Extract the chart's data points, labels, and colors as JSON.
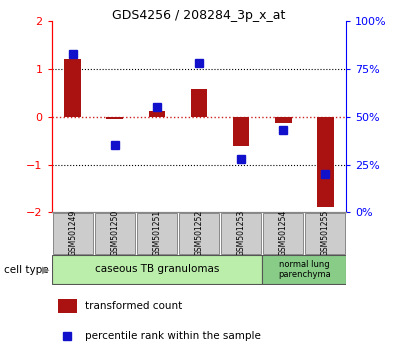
{
  "title": "GDS4256 / 208284_3p_x_at",
  "samples": [
    "GSM501249",
    "GSM501250",
    "GSM501251",
    "GSM501252",
    "GSM501253",
    "GSM501254",
    "GSM501255"
  ],
  "transformed_count": [
    1.22,
    -0.05,
    0.12,
    0.58,
    -0.62,
    -0.12,
    -1.88
  ],
  "percentile_rank": [
    83,
    35,
    55,
    78,
    28,
    43,
    20
  ],
  "left_ylim": [
    -2,
    2
  ],
  "right_ylim": [
    0,
    100
  ],
  "left_yticks": [
    -2,
    -1,
    0,
    1,
    2
  ],
  "right_yticks": [
    0,
    25,
    50,
    75,
    100
  ],
  "right_yticklabels": [
    "0%",
    "25%",
    "50%",
    "75%",
    "100%"
  ],
  "bar_color": "#aa1111",
  "marker_color": "#1111cc",
  "dotted_line_color": "#000000",
  "zero_line_color": "#cc2222",
  "group1_label": "caseous TB granulomas",
  "group2_label": "normal lung\nparenchyma",
  "group1_color": "#bbeeaa",
  "group2_color": "#88cc88",
  "cell_type_label": "cell type",
  "legend1": "transformed count",
  "legend2": "percentile rank within the sample",
  "bar_width": 0.4,
  "marker_size": 6
}
